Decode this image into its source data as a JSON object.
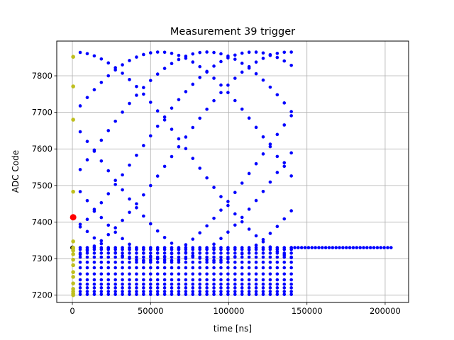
{
  "chart_data": {
    "type": "scatter",
    "title": "Measurement 39 trigger",
    "xlabel": "time [ns]",
    "ylabel": "ADC Code",
    "xlim": [
      -10000,
      215000
    ],
    "ylim": [
      7180,
      7895
    ],
    "xticks": [
      0,
      50000,
      100000,
      150000,
      200000
    ],
    "yticks": [
      7200,
      7300,
      7400,
      7500,
      7600,
      7700,
      7800
    ],
    "grid": true,
    "colors": {
      "main": "#0000ff",
      "pre": "#bfbf1f",
      "trigger": "#ff0000",
      "first": "#000000"
    },
    "blue_series": {
      "x_start": 5000,
      "x_step": 4500,
      "x_end": 140000,
      "tracks": [
        {
          "kind": "sine",
          "center": 7580,
          "amp": 285,
          "period": 300000,
          "phase": 0.4
        },
        {
          "kind": "sine",
          "center": 7580,
          "amp": 285,
          "period": 300000,
          "phase": 1.55
        },
        {
          "kind": "sine",
          "center": 7580,
          "amp": 285,
          "period": 300000,
          "phase": -0.85
        },
        {
          "kind": "sine",
          "center": 7580,
          "amp": 285,
          "period": 300000,
          "phase": 2.8
        },
        {
          "kind": "sine",
          "center": 7580,
          "amp": 285,
          "period": 300000,
          "phase": 3.75
        },
        {
          "kind": "sine",
          "center": 7580,
          "amp": 285,
          "period": 300000,
          "phase": -2.9
        },
        {
          "kind": "sine",
          "center": 7580,
          "amp": 285,
          "period": 300000,
          "phase": 4.95
        },
        {
          "kind": "sine",
          "center": 7580,
          "amp": 285,
          "period": 300000,
          "phase": 6.05
        },
        {
          "kind": "flat",
          "y": 7330
        },
        {
          "kind": "flat",
          "y": 7325
        },
        {
          "kind": "flat",
          "y": 7315
        },
        {
          "kind": "flat",
          "y": 7304
        },
        {
          "kind": "flat",
          "y": 7290
        },
        {
          "kind": "flat",
          "y": 7275
        },
        {
          "kind": "flat",
          "y": 7258
        },
        {
          "kind": "flat",
          "y": 7242
        },
        {
          "kind": "flat",
          "y": 7230
        },
        {
          "kind": "flat",
          "y": 7220
        },
        {
          "kind": "flat",
          "y": 7210
        },
        {
          "kind": "flat",
          "y": 7202
        }
      ],
      "baseline": {
        "y": 7330,
        "x_start": 140000,
        "x_step": 2200,
        "x_end": 204000
      }
    },
    "pre_points": {
      "x": 500,
      "y": [
        7852,
        7771,
        7680,
        7483,
        7347,
        7330,
        7327,
        7322,
        7312,
        7297,
        7282,
        7263,
        7250,
        7232,
        7217,
        7210,
        7204,
        7200
      ]
    },
    "trigger_point": {
      "x": 500,
      "y": 7413
    },
    "first_point": {
      "x": 0,
      "y": 7330
    }
  }
}
